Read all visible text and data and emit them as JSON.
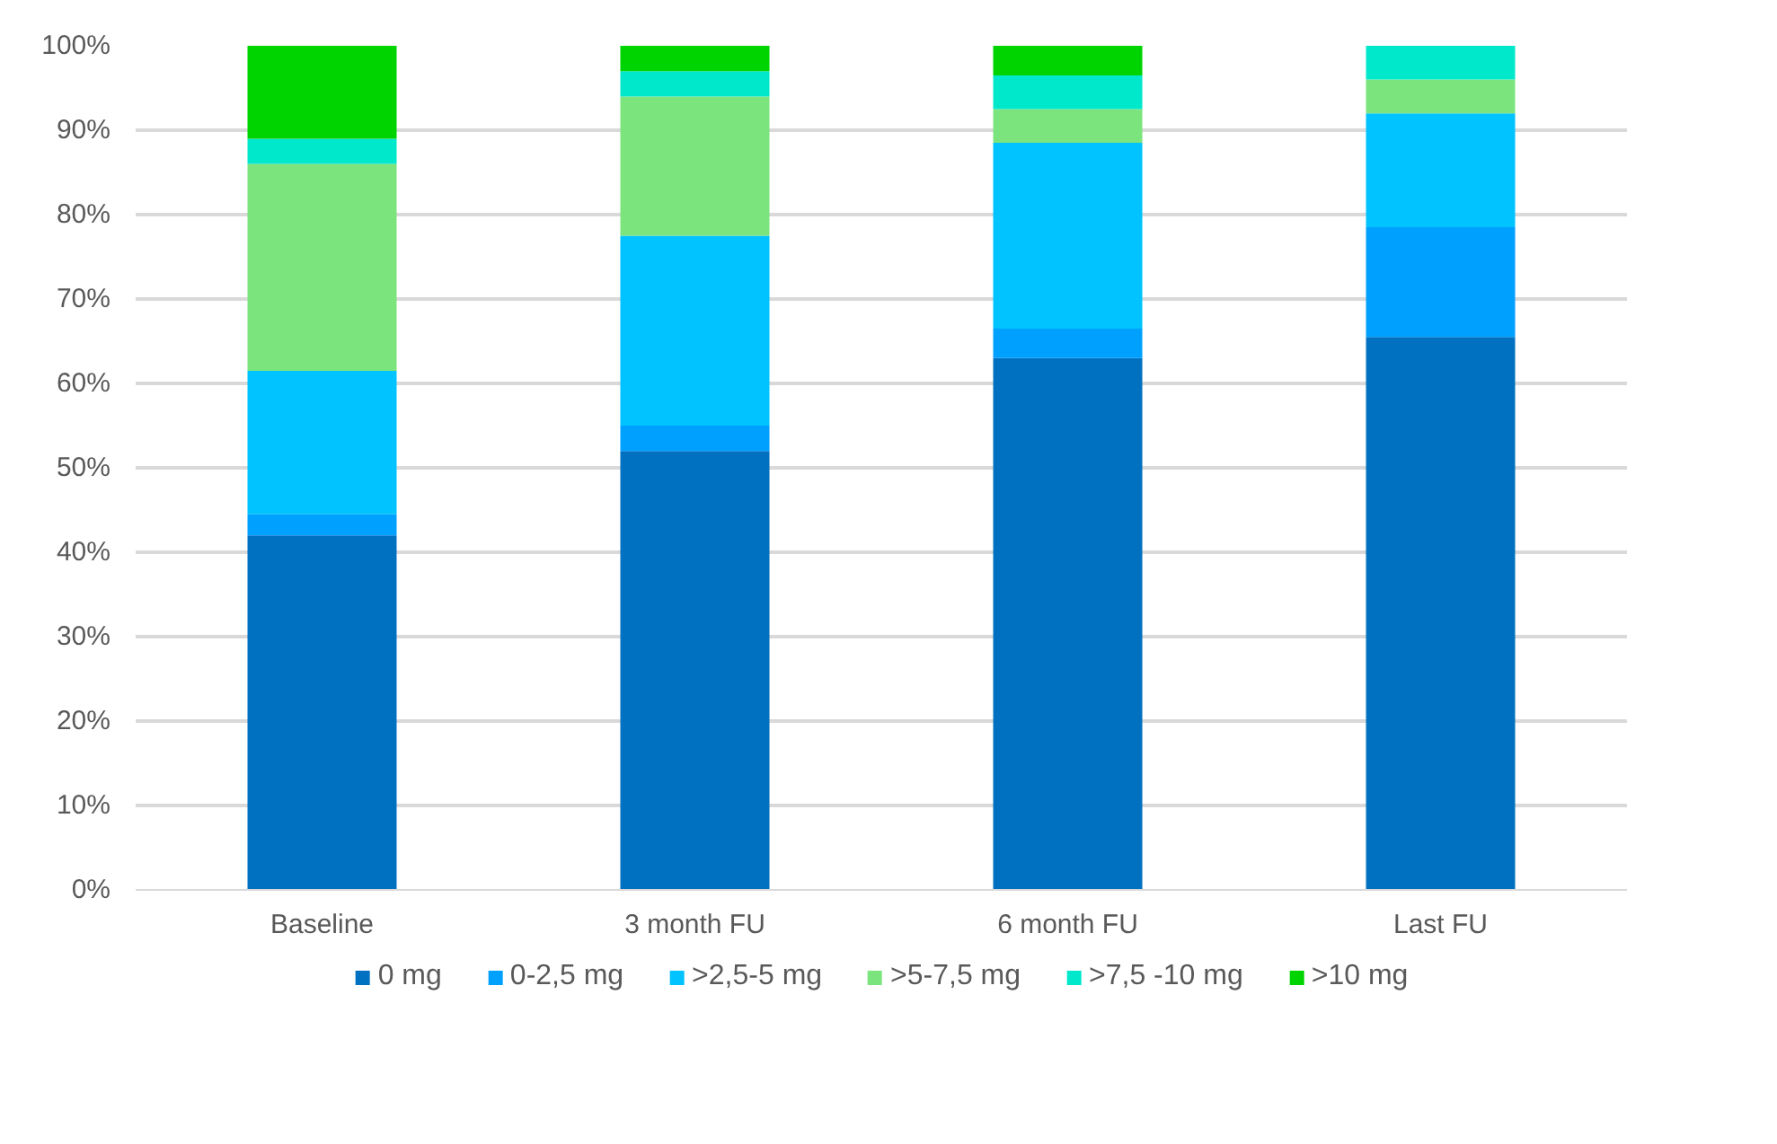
{
  "chart_data": {
    "type": "bar",
    "stacked": true,
    "categories": [
      "Baseline",
      "3 month FU",
      "6 month FU",
      "Last FU"
    ],
    "series": [
      {
        "name": "0 mg",
        "color": "#0070c0",
        "values": [
          42,
          52,
          63,
          65.5
        ]
      },
      {
        "name": "0-2,5 mg",
        "color": "#00a0ff",
        "values": [
          2.5,
          3,
          3.5,
          13
        ]
      },
      {
        "name": ">2,5-5 mg",
        "color": "#00c3ff",
        "values": [
          17,
          22.5,
          22,
          13.5
        ]
      },
      {
        "name": ">5-7,5 mg",
        "color": "#7ce47c",
        "values": [
          24.5,
          16.5,
          4,
          4
        ]
      },
      {
        "name": ">7,5 -10 mg",
        "color": "#00e8cc",
        "values": [
          3,
          3,
          4,
          4
        ]
      },
      {
        "name": ">10 mg",
        "color": "#00d400",
        "values": [
          11,
          3,
          3.5,
          0
        ]
      }
    ],
    "ylim": [
      0,
      100
    ],
    "yticks": [
      {
        "value": 0,
        "label": "0%"
      },
      {
        "value": 10,
        "label": "10%"
      },
      {
        "value": 20,
        "label": "20%"
      },
      {
        "value": 30,
        "label": "30%"
      },
      {
        "value": 40,
        "label": "40%"
      },
      {
        "value": 50,
        "label": "50%"
      },
      {
        "value": 60,
        "label": "60%"
      },
      {
        "value": 70,
        "label": "70%"
      },
      {
        "value": 80,
        "label": "80%"
      },
      {
        "value": 90,
        "label": "90%"
      },
      {
        "value": 100,
        "label": "100%"
      }
    ],
    "grid": "y",
    "legend": "bottom"
  }
}
